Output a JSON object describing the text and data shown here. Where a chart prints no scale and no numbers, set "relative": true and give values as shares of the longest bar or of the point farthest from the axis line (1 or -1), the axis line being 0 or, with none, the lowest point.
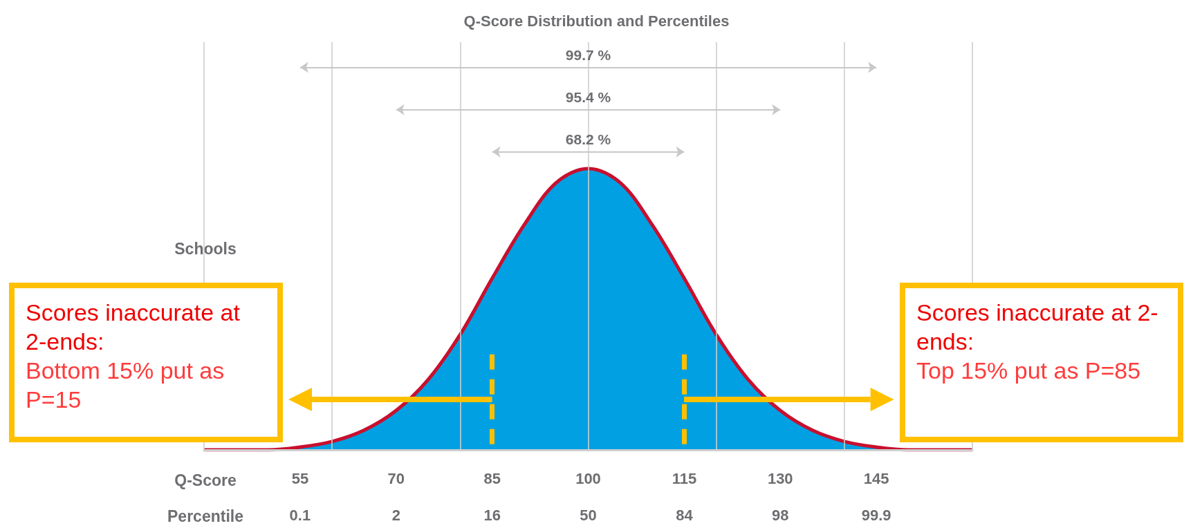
{
  "chart_data": {
    "type": "area",
    "relative": true,
    "title": "Q-Score Distribution and Percentiles",
    "ylabel": "Schools",
    "xlabel": "Q-Score",
    "x": [
      40,
      45,
      50,
      55,
      60,
      65,
      70,
      75,
      80,
      85,
      90,
      95,
      100,
      105,
      110,
      115,
      120,
      125,
      130,
      135,
      140,
      145,
      150,
      155,
      160
    ],
    "series": [
      {
        "color": "#00a0e3",
        "values": [
          0,
          0,
          0,
          0.01,
          0.03,
          0.07,
          0.14,
          0.25,
          0.41,
          0.61,
          0.8,
          0.95,
          1,
          0.95,
          0.8,
          0.61,
          0.41,
          0.25,
          0.14,
          0.07,
          0.03,
          0.01,
          0,
          0,
          0
        ]
      }
    ],
    "xlim": [
      40,
      160
    ],
    "xticks": [
      55,
      70,
      85,
      100,
      115,
      130,
      145
    ],
    "grid": "x",
    "ref_lines": [
      {
        "axis": "x",
        "value": 85,
        "color": "#ffc000",
        "line_style": "dashed"
      },
      {
        "axis": "x",
        "value": 115,
        "color": "#ffc000",
        "line_style": "dashed"
      }
    ],
    "annotations": [
      "Scores inaccurate at 2-ends:",
      "Bottom 15% put as P=15",
      "Scores inaccurate at 2-ends:",
      "Top 15% put as P=85",
      "99.7 %",
      "95.4 %",
      "68.2 %",
      "Percentile",
      "0.1",
      "2",
      "16",
      "50",
      "84",
      "98",
      "99.9"
    ]
  }
}
